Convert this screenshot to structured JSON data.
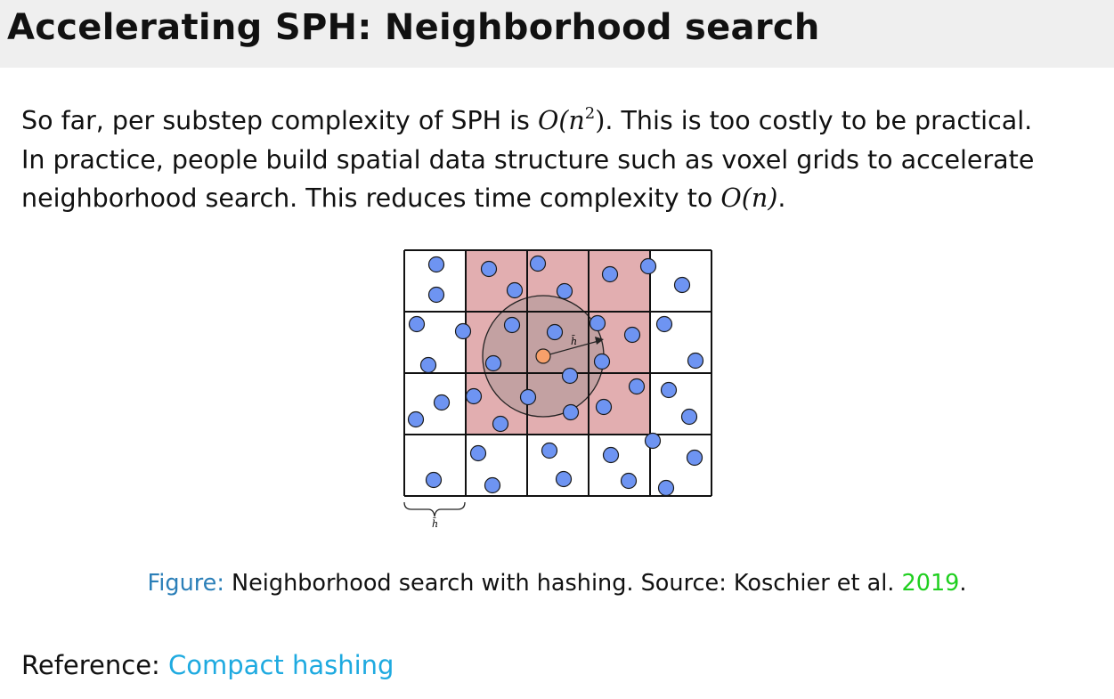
{
  "slide": {
    "title": "Accelerating SPH: Neighborhood search"
  },
  "body": {
    "line1_a": "So far, per substep complexity of SPH is ",
    "math_o_n2": "O(n",
    "math_o_n2_exp": "2",
    "math_o_n2_close": ")",
    "line1_b": ". This is too costly to be practical.",
    "line2": "In practice, people build spatial data structure such as voxel grids to accelerate",
    "line3_a": "neighborhood search. This reduces time complexity to ",
    "math_o_n": "O(n)",
    "line3_b": "."
  },
  "figure": {
    "radius_label": "h̄",
    "cell_size_label": "h̄",
    "grid_rows": 4,
    "grid_cols": 5,
    "highlight_color": "#e2aeb0",
    "particle_color": "#6e94f2",
    "query_particle_color": "#f7a06a"
  },
  "caption": {
    "label": "Figure:",
    "text": " Neighborhood search with hashing. Source: Koschier et al. ",
    "year": "2019",
    "end": "."
  },
  "reference": {
    "label": "Reference: ",
    "link_text": "Compact hashing"
  }
}
